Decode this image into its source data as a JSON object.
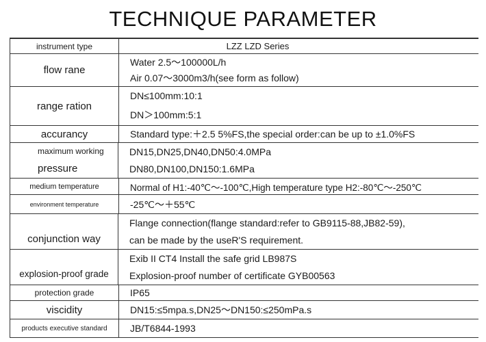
{
  "title": "TECHNIQUE PARAMETER",
  "rows": [
    {
      "label": "instrument type",
      "values": [
        "LZZ    LZD   Series"
      ]
    },
    {
      "label": "flow rane",
      "values": [
        "Water 2.5～100000L/h",
        "Air 0.07～3000m3/h(see form as follow)"
      ]
    },
    {
      "label": "range ration",
      "values": [
        "DN≤100mm:10:1",
        "DN＞100mm:5:1"
      ]
    },
    {
      "label": "accurancy",
      "values": [
        "Standard type:＋2.5 5%FS,the special order:can be up to ±1.0%FS"
      ]
    },
    {
      "label": "maximum working",
      "label2": "pressure",
      "values": [
        "DN15,DN25,DN40,DN50:4.0MPa",
        "DN80,DN100,DN150:1.6MPa"
      ]
    },
    {
      "label": "medium temperature",
      "values": [
        "Normal of H1:-40℃～-100℃,High temperature type H2:-80℃～-250℃"
      ]
    },
    {
      "label": "environment temperature",
      "values": [
        "-25℃～＋55℃"
      ]
    },
    {
      "label": "conjunction way",
      "values": [
        "Flange connection(flange standard:refer to GB9115-88,JB82-59),",
        "can be made by the useR'S requirement."
      ]
    },
    {
      "label": "explosion-proof grade",
      "values": [
        "Exib II CT4 Install the safe grid LB987S",
        "Explosion-proof number of certificate GYB00563"
      ]
    },
    {
      "label": "protection grade",
      "values": [
        "IP65"
      ]
    },
    {
      "label": "viscidity",
      "values": [
        "DN15:≤5mpa.s,DN25～DN150:≤250mPa.s"
      ]
    },
    {
      "label": "products executive standard",
      "values": [
        "JB/T6844-1993"
      ]
    }
  ]
}
